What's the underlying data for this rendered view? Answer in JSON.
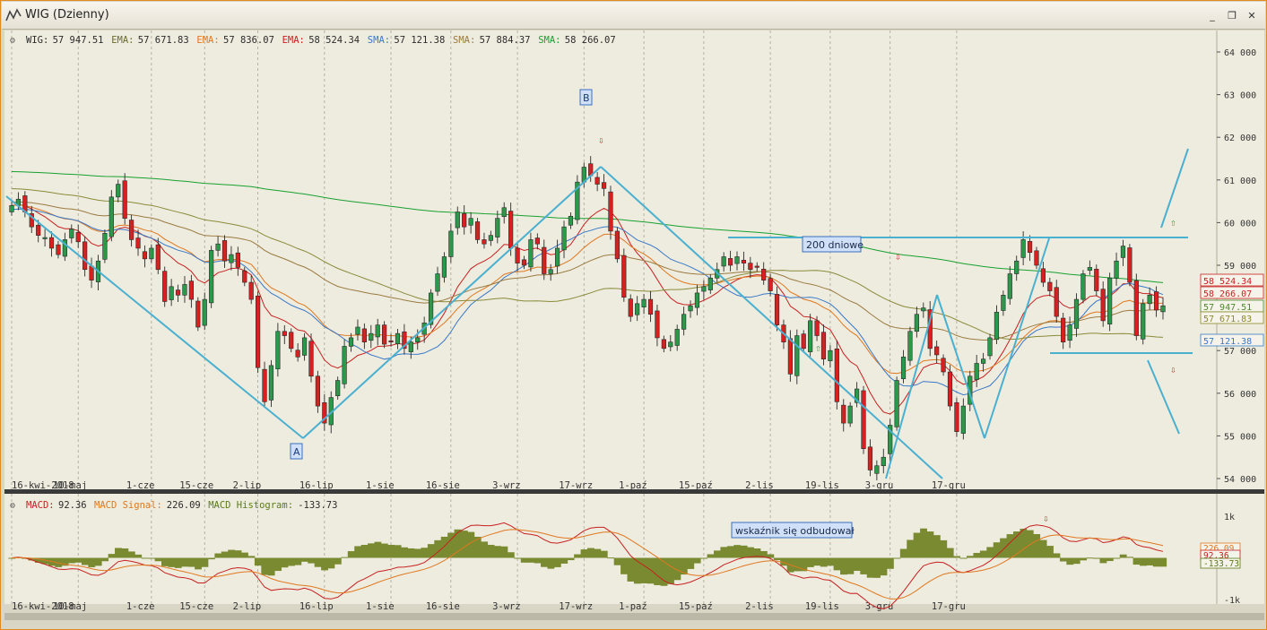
{
  "window": {
    "title": "WIG (Dzienny)",
    "buttons": [
      "_",
      "❐",
      "✕"
    ]
  },
  "price_legend": [
    {
      "label": "WIG:",
      "value": "57 947.51",
      "color": "#2b2b2b"
    },
    {
      "label": "EMA:",
      "value": "57 671.83",
      "color": "#6b6b2b"
    },
    {
      "label": "EMA:",
      "value": "57 836.07",
      "color": "#e07820"
    },
    {
      "label": "EMA:",
      "value": "58 524.34",
      "color": "#c82020"
    },
    {
      "label": "SMA:",
      "value": "57 121.38",
      "color": "#3a78c8"
    },
    {
      "label": "SMA:",
      "value": "57 884.37",
      "color": "#9a7a40"
    },
    {
      "label": "SMA:",
      "value": "58 266.07",
      "color": "#18a030"
    }
  ],
  "macd_legend": [
    {
      "label": "MACD:",
      "value": "92.36",
      "color": "#c82020"
    },
    {
      "label": "MACD Signal:",
      "value": "226.09",
      "color": "#e07820"
    },
    {
      "label": "MACD Histogram:",
      "value": "-133.73",
      "color": "#5a7a1a"
    }
  ],
  "annotations": {
    "a": "A",
    "b": "B",
    "dniowe": "200 dniowe",
    "wskaznik": "wskaźnik się odbudował"
  },
  "price_tags": [
    {
      "value": "58 524.34",
      "color": "#c82020"
    },
    {
      "value": "58 266.07",
      "color": "#c82020"
    },
    {
      "value": "57 947.51",
      "color": "#4a8a2a"
    },
    {
      "value": "57 671.83",
      "color": "#8a8a2a"
    },
    {
      "value": "57 121.38",
      "color": "#3a78c8"
    }
  ],
  "macd_tags": [
    {
      "value": "226.09",
      "color": "#e07820"
    },
    {
      "value": "92.36",
      "color": "#c82020"
    },
    {
      "value": "-133.73",
      "color": "#5a7a1a"
    }
  ],
  "chart_data": [
    {
      "type": "candlestick",
      "title": "WIG (Dzienny)",
      "x_tick_labels": [
        "16-kwi-2018",
        "10-maj",
        "1-cze",
        "15-cze",
        "2-lip",
        "16-lip",
        "1-sie",
        "16-sie",
        "3-wrz",
        "17-wrz",
        "1-paź",
        "15-paź",
        "2-lis",
        "19-lis",
        "3-gru",
        "17-gru"
      ],
      "y_tick_labels": [
        "64 000",
        "63 000",
        "62 000",
        "61 000",
        "60 000",
        "59 000",
        "58 000",
        "57 000",
        "56 000",
        "55 000",
        "54 000"
      ],
      "ylim": [
        54000,
        64000
      ],
      "grid": true,
      "close": [
        60400,
        60550,
        60250,
        59900,
        59700,
        59650,
        59400,
        59250,
        59600,
        59850,
        59550,
        58900,
        58650,
        59100,
        59750,
        60600,
        60900,
        60100,
        59600,
        59400,
        59150,
        59400,
        58900,
        58150,
        58500,
        58300,
        58550,
        58200,
        57550,
        58200,
        59350,
        59500,
        59100,
        59250,
        58950,
        58600,
        58200,
        56600,
        55800,
        56650,
        57450,
        57350,
        57050,
        56850,
        57300,
        56400,
        55700,
        55300,
        55900,
        56300,
        57100,
        57300,
        57550,
        57200,
        57400,
        57600,
        57150,
        57200,
        57400,
        57050,
        57200,
        57300,
        57650,
        58350,
        58800,
        59200,
        59800,
        60250,
        59900,
        60100,
        59600,
        59500,
        59700,
        60100,
        60350,
        59400,
        59050,
        59000,
        59600,
        59500,
        58800,
        58900,
        59400,
        59900,
        60150,
        60950,
        61300,
        61100,
        60900,
        60800,
        59800,
        59150,
        58250,
        57800,
        58100,
        58200,
        57850,
        57300,
        57050,
        57200,
        57500,
        57850,
        58050,
        58350,
        58500,
        58700,
        58900,
        59200,
        59000,
        59200,
        59050,
        58900,
        58950,
        58650,
        58400,
        57600,
        57200,
        56450,
        57350,
        57050,
        57700,
        57350,
        56800,
        57000,
        55800,
        55300,
        55700,
        56100,
        54700,
        54200,
        54300,
        54500,
        55250,
        56300,
        56850,
        57450,
        57850,
        58000,
        57050,
        56900,
        56500,
        55700,
        55100,
        55700,
        56400,
        56700,
        56800,
        57300,
        57900,
        58300,
        58800,
        59100,
        59600,
        59300,
        59000,
        58600,
        58400,
        57800,
        57200,
        57600,
        58200,
        58800,
        58950,
        58400,
        57700,
        58700,
        59100,
        59450,
        58600,
        57350,
        58100,
        58300,
        57950,
        58050
      ]
    },
    {
      "type": "bar+line",
      "title": "MACD",
      "series": [
        {
          "name": "MACD",
          "value_last": 92.36
        },
        {
          "name": "MACD Signal",
          "value_last": 226.09
        },
        {
          "name": "MACD Histogram",
          "value_last": -133.73
        }
      ],
      "y_tick_labels": [
        "1k",
        "0k",
        "-1k"
      ],
      "ylim": [
        -1000,
        1000
      ],
      "x_tick_labels": [
        "16-kwi-2018",
        "10-maj",
        "1-cze",
        "15-cze",
        "2-lip",
        "16-lip",
        "1-sie",
        "16-sie",
        "3-wrz",
        "17-wrz",
        "1-paź",
        "15-paź",
        "2-lis",
        "19-lis",
        "3-gru",
        "17-gru"
      ]
    }
  ]
}
